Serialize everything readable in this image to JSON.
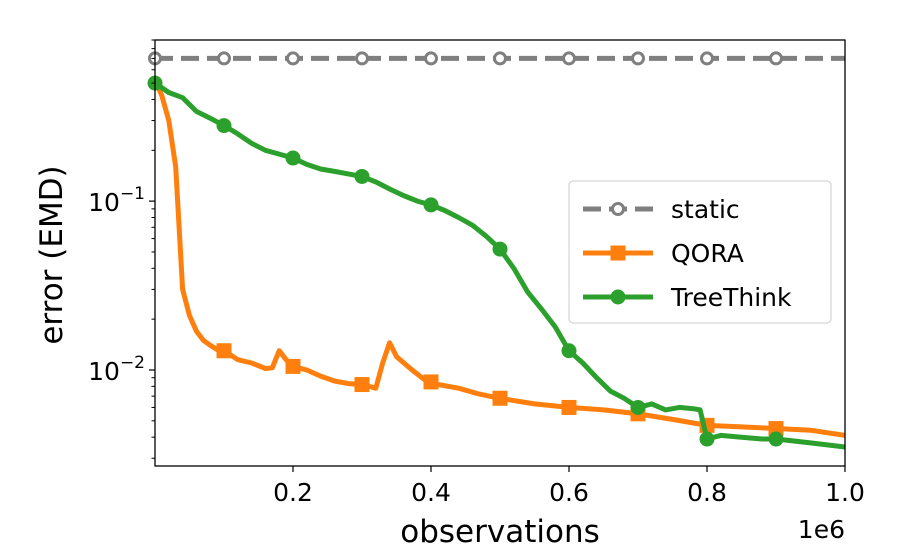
{
  "chart_data": {
    "type": "line",
    "xlabel": "observations",
    "ylabel": "error (EMD)",
    "xscale": "linear",
    "yscale": "log",
    "xlim": [
      0,
      1000000
    ],
    "ylim": [
      0.0027,
      0.9
    ],
    "x_offset_label": "1e6",
    "xticks": [
      {
        "value": 200000,
        "label": "0.2"
      },
      {
        "value": 400000,
        "label": "0.4"
      },
      {
        "value": 600000,
        "label": "0.6"
      },
      {
        "value": 800000,
        "label": "0.8"
      },
      {
        "value": 1000000,
        "label": "1.0"
      }
    ],
    "yticks": [
      {
        "value": 0.01,
        "label_base": "10",
        "label_exp": "−2"
      },
      {
        "value": 0.1,
        "label_base": "10",
        "label_exp": "−1"
      }
    ],
    "legend": {
      "position": "center-right",
      "entries": [
        "static",
        "QORA",
        "TreeThink"
      ]
    },
    "series": [
      {
        "name": "static",
        "color": "#7f7f7f",
        "style": "dashed",
        "marker": "circle-open",
        "x": [
          0,
          100000,
          200000,
          300000,
          400000,
          500000,
          600000,
          700000,
          800000,
          900000,
          1000000
        ],
        "y": [
          0.7,
          0.7,
          0.7,
          0.7,
          0.7,
          0.7,
          0.7,
          0.7,
          0.7,
          0.7,
          0.7
        ],
        "marker_x": [
          0,
          100000,
          200000,
          300000,
          400000,
          500000,
          600000,
          700000,
          800000,
          900000
        ]
      },
      {
        "name": "QORA",
        "color": "#ff7f0e",
        "style": "solid",
        "marker": "square",
        "x": [
          0,
          10000,
          20000,
          30000,
          40000,
          50000,
          60000,
          70000,
          80000,
          90000,
          100000,
          120000,
          140000,
          160000,
          170000,
          180000,
          190000,
          200000,
          220000,
          240000,
          260000,
          280000,
          300000,
          310000,
          320000,
          330000,
          340000,
          350000,
          370000,
          390000,
          410000,
          440000,
          470000,
          500000,
          550000,
          600000,
          650000,
          700000,
          750000,
          800000,
          850000,
          900000,
          950000,
          1000000
        ],
        "y": [
          0.52,
          0.42,
          0.3,
          0.16,
          0.03,
          0.021,
          0.017,
          0.015,
          0.014,
          0.0132,
          0.013,
          0.0115,
          0.011,
          0.0102,
          0.0103,
          0.013,
          0.0115,
          0.0105,
          0.01,
          0.0092,
          0.0086,
          0.0083,
          0.0082,
          0.008,
          0.0078,
          0.011,
          0.0145,
          0.012,
          0.0102,
          0.0088,
          0.0082,
          0.0078,
          0.0072,
          0.0068,
          0.0063,
          0.006,
          0.0058,
          0.0055,
          0.0051,
          0.0047,
          0.0046,
          0.0045,
          0.0044,
          0.0041
        ],
        "marker_x": [
          100000,
          200000,
          300000,
          400000,
          500000,
          600000,
          700000,
          800000,
          900000
        ]
      },
      {
        "name": "TreeThink",
        "color": "#2ca02c",
        "style": "solid",
        "marker": "circle",
        "x": [
          0,
          20000,
          40000,
          60000,
          80000,
          100000,
          120000,
          140000,
          160000,
          180000,
          200000,
          220000,
          240000,
          260000,
          280000,
          300000,
          320000,
          340000,
          360000,
          380000,
          400000,
          420000,
          440000,
          460000,
          480000,
          500000,
          520000,
          540000,
          560000,
          580000,
          600000,
          620000,
          640000,
          660000,
          680000,
          700000,
          720000,
          740000,
          760000,
          780000,
          790000,
          800000,
          820000,
          850000,
          880000,
          900000,
          950000,
          1000000
        ],
        "y": [
          0.5,
          0.44,
          0.41,
          0.34,
          0.31,
          0.28,
          0.25,
          0.22,
          0.2,
          0.19,
          0.18,
          0.165,
          0.155,
          0.15,
          0.145,
          0.14,
          0.13,
          0.118,
          0.108,
          0.1,
          0.095,
          0.088,
          0.08,
          0.072,
          0.062,
          0.052,
          0.04,
          0.029,
          0.023,
          0.018,
          0.013,
          0.011,
          0.009,
          0.0075,
          0.0068,
          0.006,
          0.0063,
          0.0058,
          0.006,
          0.0059,
          0.0058,
          0.0039,
          0.0041,
          0.004,
          0.0039,
          0.0039,
          0.0037,
          0.0035
        ],
        "marker_x": [
          0,
          100000,
          200000,
          300000,
          400000,
          500000,
          600000,
          700000,
          800000,
          900000
        ]
      }
    ]
  }
}
